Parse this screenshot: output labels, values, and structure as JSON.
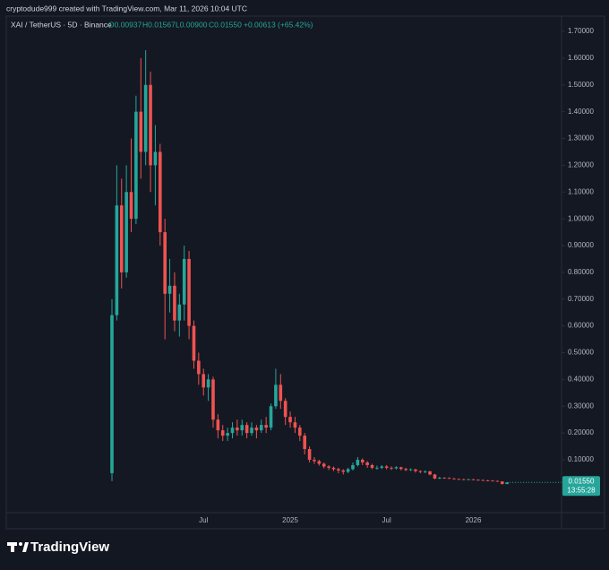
{
  "header": "cryptodude999 created with TradingView.com, Mar 11, 2026 10:04 UTC",
  "footer": "TradingView",
  "chart_data": {
    "type": "candlestick",
    "legend": {
      "symbol": "XAI / TetherUS · 5D · Binance",
      "open": "O0.00937",
      "high": "H0.01567",
      "low": "L0.00900",
      "close": "C0.01550",
      "change": "+0.00613 (+65.42%)"
    },
    "last_price_label": "0.01550",
    "countdown": "13:55:28",
    "up_color": "#26a69a",
    "down_color": "#ef5350",
    "grid": false,
    "categories": [
      null,
      null,
      null,
      null,
      null,
      null,
      null,
      null,
      null,
      null,
      null,
      null,
      null,
      null,
      null,
      null,
      null,
      null,
      null,
      "Jul",
      null,
      null,
      null,
      null,
      null,
      null,
      null,
      null,
      null,
      null,
      null,
      null,
      null,
      null,
      null,
      null,
      null,
      "2025",
      null,
      null,
      null,
      null,
      null,
      null,
      null,
      null,
      null,
      null,
      null,
      null,
      null,
      null,
      null,
      null,
      null,
      null,
      null,
      "Jul",
      null,
      null,
      null,
      null,
      null,
      null,
      null,
      null,
      null,
      null,
      null,
      null,
      null,
      null,
      null,
      null,
      null,
      "2026",
      null,
      null,
      null,
      null,
      null,
      null,
      null
    ],
    "open": [
      0.05,
      0.64,
      1.05,
      0.8,
      1.1,
      1.0,
      1.4,
      1.25,
      1.5,
      1.2,
      1.25,
      0.95,
      0.72,
      0.75,
      0.62,
      0.68,
      0.85,
      0.6,
      0.47,
      0.42,
      0.37,
      0.4,
      0.25,
      0.21,
      0.19,
      0.2,
      0.22,
      0.21,
      0.23,
      0.2,
      0.22,
      0.21,
      0.23,
      0.22,
      0.3,
      0.38,
      0.32,
      0.26,
      0.24,
      0.22,
      0.19,
      0.14,
      0.1,
      0.095,
      0.085,
      0.075,
      0.07,
      0.065,
      0.06,
      0.055,
      0.065,
      0.08,
      0.1,
      0.09,
      0.08,
      0.07,
      0.07,
      0.075,
      0.07,
      0.068,
      0.072,
      0.066,
      0.062,
      0.064,
      0.058,
      0.055,
      0.057,
      0.045,
      0.03,
      0.033,
      0.032,
      0.03,
      0.028,
      0.027,
      0.026,
      0.027,
      0.025,
      0.024,
      0.023,
      0.022,
      0.021,
      0.019,
      0.00937
    ],
    "high": [
      0.7,
      1.2,
      1.15,
      1.2,
      1.3,
      1.46,
      1.6,
      1.63,
      1.55,
      1.35,
      1.28,
      1.0,
      0.85,
      0.8,
      0.72,
      0.9,
      0.88,
      0.62,
      0.5,
      0.44,
      0.42,
      0.41,
      0.27,
      0.23,
      0.22,
      0.24,
      0.25,
      0.25,
      0.24,
      0.24,
      0.23,
      0.25,
      0.26,
      0.31,
      0.44,
      0.42,
      0.33,
      0.28,
      0.26,
      0.23,
      0.2,
      0.15,
      0.11,
      0.1,
      0.09,
      0.08,
      0.075,
      0.07,
      0.065,
      0.07,
      0.09,
      0.11,
      0.105,
      0.095,
      0.085,
      0.078,
      0.08,
      0.08,
      0.075,
      0.076,
      0.074,
      0.07,
      0.068,
      0.066,
      0.06,
      0.06,
      0.058,
      0.047,
      0.036,
      0.035,
      0.034,
      0.032,
      0.03,
      0.029,
      0.029,
      0.028,
      0.027,
      0.026,
      0.025,
      0.024,
      0.022,
      0.02,
      0.01567
    ],
    "low": [
      0.02,
      0.62,
      0.74,
      0.78,
      0.95,
      0.98,
      1.15,
      1.2,
      1.1,
      1.05,
      0.9,
      0.55,
      0.65,
      0.58,
      0.56,
      0.62,
      0.55,
      0.44,
      0.38,
      0.34,
      0.32,
      0.22,
      0.18,
      0.17,
      0.17,
      0.18,
      0.19,
      0.19,
      0.18,
      0.19,
      0.18,
      0.2,
      0.2,
      0.21,
      0.29,
      0.29,
      0.23,
      0.22,
      0.2,
      0.17,
      0.12,
      0.09,
      0.085,
      0.078,
      0.068,
      0.062,
      0.058,
      0.05,
      0.045,
      0.05,
      0.06,
      0.075,
      0.08,
      0.07,
      0.065,
      0.063,
      0.065,
      0.064,
      0.062,
      0.064,
      0.06,
      0.058,
      0.058,
      0.052,
      0.05,
      0.05,
      0.042,
      0.027,
      0.028,
      0.029,
      0.028,
      0.026,
      0.025,
      0.024,
      0.024,
      0.023,
      0.022,
      0.021,
      0.02,
      0.019,
      0.017,
      0.008,
      0.009
    ],
    "close": [
      0.64,
      1.05,
      0.8,
      1.1,
      1.0,
      1.4,
      1.25,
      1.5,
      1.2,
      1.25,
      0.95,
      0.72,
      0.75,
      0.62,
      0.68,
      0.85,
      0.6,
      0.47,
      0.42,
      0.37,
      0.4,
      0.25,
      0.21,
      0.19,
      0.2,
      0.22,
      0.21,
      0.23,
      0.2,
      0.22,
      0.21,
      0.23,
      0.22,
      0.3,
      0.38,
      0.32,
      0.26,
      0.24,
      0.22,
      0.19,
      0.14,
      0.1,
      0.095,
      0.085,
      0.075,
      0.07,
      0.065,
      0.06,
      0.055,
      0.065,
      0.08,
      0.1,
      0.09,
      0.08,
      0.07,
      0.07,
      0.075,
      0.07,
      0.068,
      0.072,
      0.066,
      0.062,
      0.064,
      0.058,
      0.055,
      0.057,
      0.045,
      0.03,
      0.033,
      0.032,
      0.03,
      0.028,
      0.027,
      0.026,
      0.027,
      0.025,
      0.024,
      0.023,
      0.022,
      0.021,
      0.019,
      0.00937,
      0.0155
    ],
    "ylim": [
      -0.0975,
      1.757
    ],
    "yticks": [
      {
        "value": 0.1,
        "label": "0.10000"
      },
      {
        "value": 0.2,
        "label": "0.20000"
      },
      {
        "value": 0.3,
        "label": "0.30000"
      },
      {
        "value": 0.4,
        "label": "0.40000"
      },
      {
        "value": 0.5,
        "label": "0.50000"
      },
      {
        "value": 0.6,
        "label": "0.60000"
      },
      {
        "value": 0.7,
        "label": "0.70000"
      },
      {
        "value": 0.8,
        "label": "0.80000"
      },
      {
        "value": 0.9,
        "label": "0.90000"
      },
      {
        "value": 1.0,
        "label": "1.00000"
      },
      {
        "value": 1.1,
        "label": "1.10000"
      },
      {
        "value": 1.2,
        "label": "1.20000"
      },
      {
        "value": 1.3,
        "label": "1.30000"
      },
      {
        "value": 1.4,
        "label": "1.40000"
      },
      {
        "value": 1.5,
        "label": "1.50000"
      },
      {
        "value": 1.6,
        "label": "1.60000"
      },
      {
        "value": 1.7,
        "label": "1.70000"
      }
    ]
  }
}
